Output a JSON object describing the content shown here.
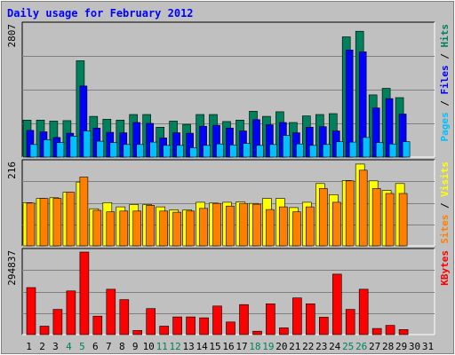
{
  "chart_data": {
    "type": "bar",
    "title": "Daily usage for February 2012",
    "days": [
      "1",
      "2",
      "3",
      "4",
      "5",
      "6",
      "7",
      "8",
      "9",
      "10",
      "11",
      "12",
      "13",
      "14",
      "15",
      "16",
      "17",
      "18",
      "19",
      "20",
      "21",
      "22",
      "23",
      "24",
      "25",
      "26",
      "27",
      "28",
      "29",
      "30",
      "31"
    ],
    "weekend_days": [
      "4",
      "5",
      "11",
      "12",
      "18",
      "19",
      "25",
      "26"
    ],
    "colors": {
      "background": "#c0c0c0",
      "plot_bg": "#c0c0c0",
      "title": "#0000ff",
      "weekend_label": "#00805c",
      "weekday_label": "#000000",
      "hits": "#00805c",
      "files": "#0000ff",
      "pages": "#00c0ff",
      "visits": "#ffff00",
      "sites": "#ff8000",
      "kbytes": "#ff0000"
    },
    "panels": [
      {
        "id": "hits-files-pages",
        "max_label": "2807",
        "ymax": 2807,
        "side_legend": [
          {
            "text": "Pages",
            "color": "#00c0ff"
          },
          {
            "text": " / ",
            "color": "#000000"
          },
          {
            "text": "Files",
            "color": "#0000ff"
          },
          {
            "text": " / ",
            "color": "#000000"
          },
          {
            "text": "Hits",
            "color": "#00805c"
          }
        ],
        "series": [
          {
            "key": "hits",
            "color": "#00805c",
            "values": [
              790,
              790,
              770,
              780,
              2060,
              870,
              810,
              790,
              910,
              910,
              640,
              770,
              700,
              910,
              910,
              760,
              790,
              980,
              870,
              970,
              740,
              880,
              910,
              930,
              2570,
              2690,
              1330,
              1470,
              1270,
              null,
              null
            ]
          },
          {
            "key": "files",
            "color": "#0000ff",
            "values": [
              570,
              540,
              420,
              510,
              1520,
              620,
              530,
              520,
              740,
              720,
              410,
              520,
              510,
              660,
              680,
              620,
              560,
              800,
              690,
              740,
              520,
              640,
              650,
              560,
              2290,
              2250,
              1050,
              1250,
              920,
              null,
              null
            ]
          },
          {
            "key": "pages",
            "color": "#00c0ff",
            "values": [
              270,
              370,
              310,
              450,
              560,
              340,
              310,
              270,
              270,
              320,
              250,
              250,
              200,
              250,
              280,
              260,
              290,
              250,
              270,
              460,
              280,
              250,
              270,
              330,
              320,
              420,
              310,
              280,
              330,
              null,
              null
            ]
          }
        ]
      },
      {
        "id": "visits-sites",
        "max_label": "216",
        "ymax": 216,
        "side_legend": [
          {
            "text": "Sites",
            "color": "#ff8000"
          },
          {
            "text": " / ",
            "color": "#000000"
          },
          {
            "text": "Visits",
            "color": "#ffff00"
          }
        ],
        "series": [
          {
            "key": "visits",
            "color": "#ffff00",
            "values": [
              113,
              124,
              126,
              140,
              167,
              97,
              113,
              102,
              108,
              108,
              102,
              94,
              94,
              114,
              112,
              114,
              115,
              111,
              124,
              124,
              100,
              114,
              163,
              134,
              171,
              214,
              170,
              145,
              163,
              null,
              null
            ]
          },
          {
            "key": "sites",
            "color": "#ff8000",
            "values": [
              112,
              124,
              124,
              140,
              180,
              93,
              89,
              91,
              91,
              106,
              91,
              88,
              91,
              98,
              111,
              104,
              111,
              109,
              95,
              102,
              89,
              102,
              150,
              114,
              170,
              198,
              150,
              137,
              137,
              null,
              null
            ]
          }
        ]
      },
      {
        "id": "kbytes",
        "max_label": "294837",
        "ymax": 294837,
        "side_legend": [
          {
            "text": "KBytes",
            "color": "#ff0000"
          }
        ],
        "series": [
          {
            "key": "kbytes",
            "color": "#ff0000",
            "values": [
              168000,
              30000,
              90000,
              156000,
              294837,
              66000,
              162000,
              125000,
              15000,
              93000,
              30000,
              63000,
              63000,
              60000,
              102000,
              45000,
              107000,
              12000,
              110000,
              24000,
              131000,
              110000,
              62000,
              216000,
              90000,
              162000,
              22000,
              33000,
              18000,
              null,
              null
            ]
          }
        ]
      }
    ]
  }
}
